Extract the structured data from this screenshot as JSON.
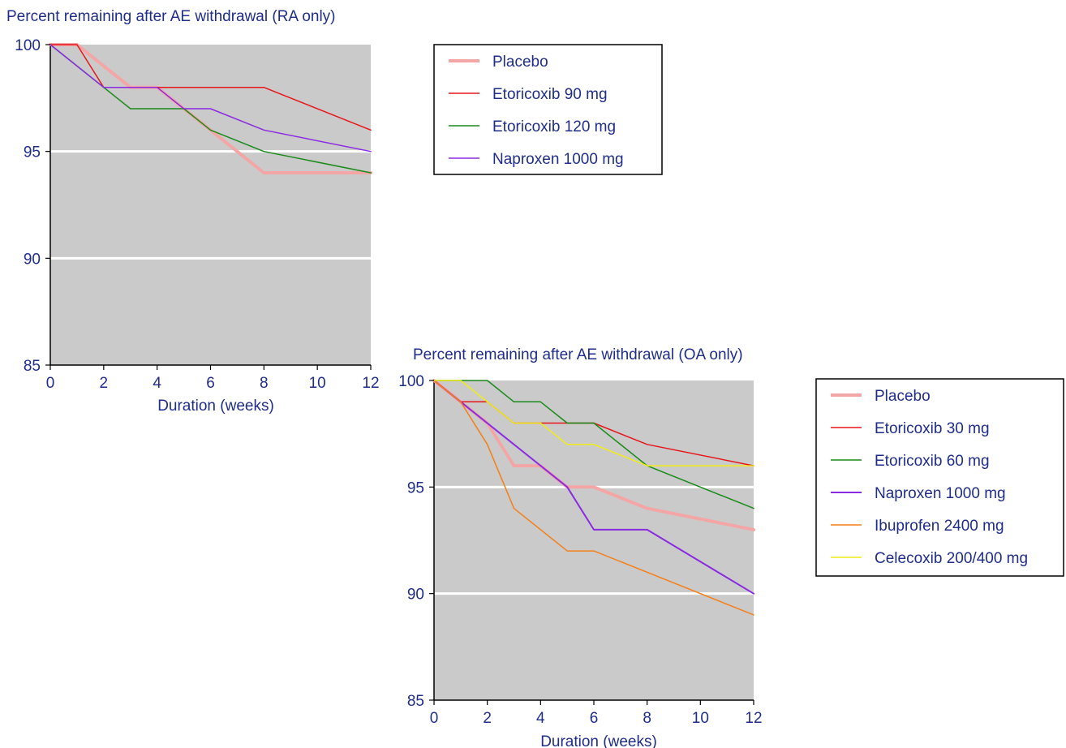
{
  "chart_data": [
    {
      "type": "line",
      "title": "Percent remaining after AE withdrawal (RA only)",
      "xlabel": "Duration (weeks)",
      "ylabel": "",
      "xlim": [
        0,
        12
      ],
      "ylim": [
        85,
        100
      ],
      "xticks": [
        0,
        2,
        4,
        6,
        8,
        10,
        12
      ],
      "yticks": [
        85,
        90,
        95,
        100
      ],
      "grid": "horizontal at 90 and 95",
      "legend_position": "right",
      "series": [
        {
          "name": "Placebo",
          "color": "#f4a6a6",
          "width": 4,
          "x": [
            0,
            1,
            2,
            3,
            4,
            5,
            6,
            7,
            8,
            12
          ],
          "y": [
            100,
            100,
            99,
            98,
            98,
            97,
            96,
            95,
            94,
            94
          ]
        },
        {
          "name": "Etoricoxib 90 mg",
          "color": "#e8161b",
          "width": 1.5,
          "x": [
            0,
            1,
            2,
            4,
            8,
            12
          ],
          "y": [
            100,
            100,
            98,
            98,
            98,
            96
          ]
        },
        {
          "name": "Etoricoxib 120 mg",
          "color": "#1a8a1a",
          "width": 1.5,
          "x": [
            0,
            2,
            3,
            5,
            6,
            8,
            12
          ],
          "y": [
            100,
            98,
            97,
            97,
            96,
            95,
            94
          ]
        },
        {
          "name": "Naproxen 1000 mg",
          "color": "#8a2be2",
          "width": 1.5,
          "x": [
            0,
            2,
            4,
            5,
            6,
            8,
            12
          ],
          "y": [
            100,
            98,
            98,
            97,
            97,
            96,
            95
          ]
        }
      ]
    },
    {
      "type": "line",
      "title": "Percent remaining after AE withdrawal (OA only)",
      "xlabel": "Duration (weeks)",
      "ylabel": "",
      "xlim": [
        0,
        12
      ],
      "ylim": [
        85,
        100
      ],
      "xticks": [
        0,
        2,
        4,
        6,
        8,
        10,
        12
      ],
      "yticks": [
        85,
        90,
        95,
        100
      ],
      "grid": "horizontal at 90 and 95",
      "legend_position": "right",
      "series": [
        {
          "name": "Placebo",
          "color": "#f4a6a6",
          "width": 4,
          "x": [
            0,
            1,
            2,
            3,
            4,
            5,
            6,
            8,
            12
          ],
          "y": [
            100,
            99,
            98,
            96,
            96,
            95,
            95,
            94,
            93
          ]
        },
        {
          "name": "Etoricoxib 30 mg",
          "color": "#e8161b",
          "width": 1.5,
          "x": [
            0,
            1,
            2,
            3,
            4,
            5,
            6,
            8,
            12
          ],
          "y": [
            100,
            99,
            99,
            98,
            98,
            98,
            98,
            97,
            96
          ]
        },
        {
          "name": "Etoricoxib 60 mg",
          "color": "#1a8a1a",
          "width": 1.5,
          "x": [
            0,
            1,
            2,
            3,
            4,
            5,
            6,
            8,
            12
          ],
          "y": [
            100,
            100,
            100,
            99,
            99,
            98,
            98,
            96,
            94
          ]
        },
        {
          "name": "Naproxen 1000 mg",
          "color": "#8a2be2",
          "width": 2,
          "x": [
            0,
            1,
            5,
            6,
            8,
            12
          ],
          "y": [
            100,
            99,
            95,
            93,
            93,
            90
          ]
        },
        {
          "name": "Ibuprofen 2400 mg",
          "color": "#f57f17",
          "width": 1.5,
          "x": [
            0,
            1,
            2,
            3,
            5,
            6,
            12
          ],
          "y": [
            100,
            99,
            97,
            94,
            92,
            92,
            89
          ]
        },
        {
          "name": "Celecoxib 200/400 mg",
          "color": "#f2ec16",
          "width": 1.5,
          "x": [
            0,
            1,
            3,
            4,
            5,
            6,
            8,
            12
          ],
          "y": [
            100,
            100,
            98,
            98,
            97,
            97,
            96,
            96
          ]
        }
      ]
    }
  ]
}
